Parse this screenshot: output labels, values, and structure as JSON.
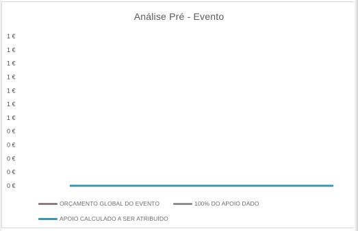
{
  "chart_data": {
    "type": "line",
    "title": "Análise Pré - Evento",
    "xlabel": "",
    "ylabel": "",
    "y_tick_labels": [
      "1 €",
      "1 €",
      "1 €",
      "1 €",
      "1 €",
      "1 €",
      "1 €",
      "0 €",
      "0 €",
      "0 €",
      "0 €",
      "0 €"
    ],
    "ylim": [
      0,
      1
    ],
    "grid": false,
    "legend_position": "bottom",
    "x": [
      0,
      1
    ],
    "series": [
      {
        "name": "ORÇAMENTO GLOBAL DO EVENTO",
        "color": "#8c7b80",
        "values": [
          0,
          0
        ]
      },
      {
        "name": "100% DO APOIO DADO",
        "color": "#8f8f8f",
        "values": [
          0,
          0
        ]
      },
      {
        "name": "APOIO CALCULADO A SER ATRIBUÍDO",
        "color": "#3b95ad",
        "values": [
          0,
          0
        ]
      }
    ]
  }
}
